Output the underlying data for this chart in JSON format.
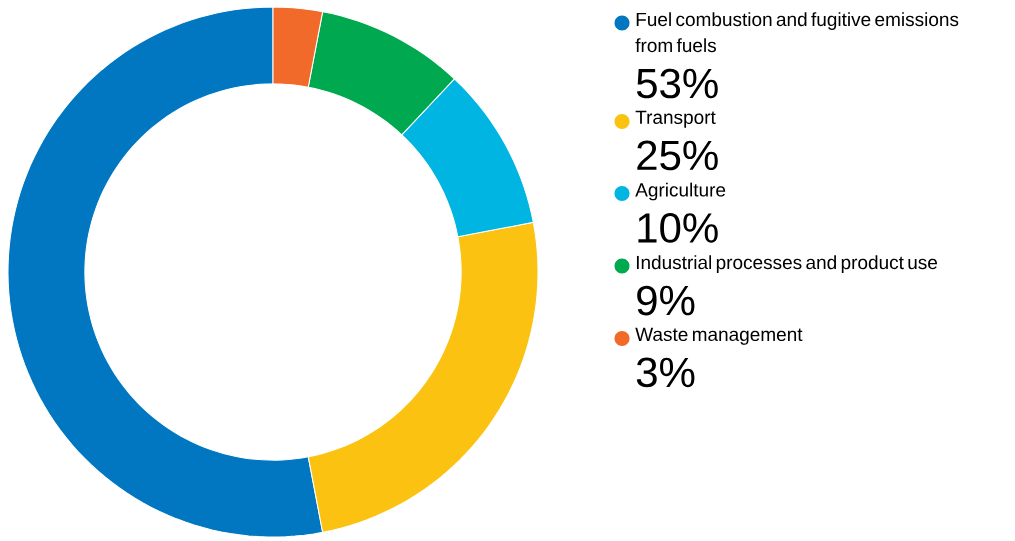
{
  "chart_data": {
    "type": "donut",
    "categories": [
      "Fuel combustion and fugitive emissions from fuels",
      "Transport",
      "Agriculture",
      "Industrial processes and product use",
      "Waste management"
    ],
    "values": [
      53,
      25,
      10,
      9,
      3
    ],
    "value_labels": [
      "53%",
      "25%",
      "10%",
      "9%",
      "3%"
    ],
    "colors": [
      "#0077c0",
      "#fcc211",
      "#00b5e2",
      "#00a94f",
      "#f26a2a"
    ],
    "legend": "right"
  }
}
